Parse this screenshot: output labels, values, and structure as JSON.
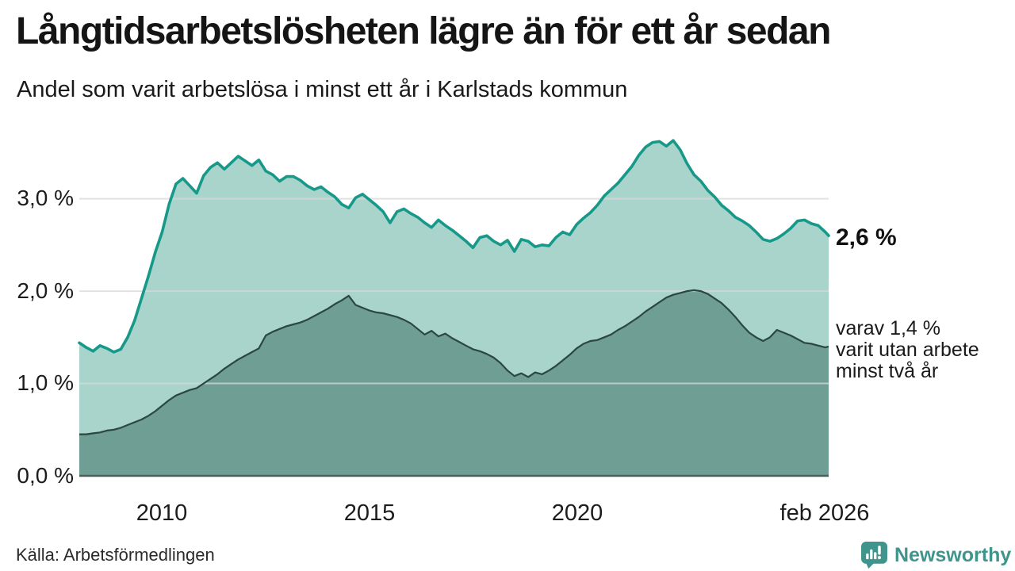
{
  "header": {
    "title": "Långtidsarbetslösheten lägre än för ett år sedan",
    "subtitle": "Andel som varit arbetslösa i minst ett år i Karlstads kommun"
  },
  "footer": {
    "source": "Källa: Arbetsförmedlingen",
    "brand_name": "Newsworthy"
  },
  "chart_data": {
    "type": "area",
    "title": "Långtidsarbetslösheten lägre än för ett år sedan",
    "subtitle": "Andel som varit arbetslösa i minst ett år i Karlstads kommun",
    "unit": "%",
    "grid": true,
    "legend": "none",
    "x_range": [
      2008.0,
      2026.083
    ],
    "y_range": [
      0,
      3.85
    ],
    "y_ticks": [
      {
        "value": 0,
        "label": "0,0 %"
      },
      {
        "value": 1,
        "label": "1,0 %"
      },
      {
        "value": 2,
        "label": "2,0 %"
      },
      {
        "value": 3,
        "label": "3,0 %"
      }
    ],
    "x_ticks": [
      {
        "value": 2010,
        "label": "2010"
      },
      {
        "value": 2015,
        "label": "2015"
      },
      {
        "value": 2020,
        "label": "2020"
      },
      {
        "value": 2026.083,
        "label": "feb 2026"
      }
    ],
    "colors": {
      "total_line": "#17998a",
      "total_fill": "#a8d4cb",
      "two_years_line": "#2b4741",
      "two_years_fill": "#6f9e95",
      "grid": "#d8d8d8",
      "baseline": "#4f5e59",
      "text": "#1a1a1a",
      "brand_teal": "#3f948c"
    },
    "x": [
      2008.0,
      2008.167,
      2008.333,
      2008.5,
      2008.667,
      2008.833,
      2009.0,
      2009.167,
      2009.333,
      2009.5,
      2009.667,
      2009.833,
      2010.0,
      2010.167,
      2010.333,
      2010.5,
      2010.667,
      2010.833,
      2011.0,
      2011.167,
      2011.333,
      2011.5,
      2011.667,
      2011.833,
      2012.0,
      2012.167,
      2012.333,
      2012.5,
      2012.667,
      2012.833,
      2013.0,
      2013.167,
      2013.333,
      2013.5,
      2013.667,
      2013.833,
      2014.0,
      2014.167,
      2014.333,
      2014.5,
      2014.667,
      2014.833,
      2015.0,
      2015.167,
      2015.333,
      2015.5,
      2015.667,
      2015.833,
      2016.0,
      2016.167,
      2016.333,
      2016.5,
      2016.667,
      2016.833,
      2017.0,
      2017.167,
      2017.333,
      2017.5,
      2017.667,
      2017.833,
      2018.0,
      2018.167,
      2018.333,
      2018.5,
      2018.667,
      2018.833,
      2019.0,
      2019.167,
      2019.333,
      2019.5,
      2019.667,
      2019.833,
      2020.0,
      2020.167,
      2020.333,
      2020.5,
      2020.667,
      2020.833,
      2021.0,
      2021.167,
      2021.333,
      2021.5,
      2021.667,
      2021.833,
      2022.0,
      2022.167,
      2022.333,
      2022.5,
      2022.667,
      2022.833,
      2023.0,
      2023.167,
      2023.333,
      2023.5,
      2023.667,
      2023.833,
      2024.0,
      2024.167,
      2024.333,
      2024.5,
      2024.667,
      2024.833,
      2025.0,
      2025.167,
      2025.333,
      2025.5,
      2025.667,
      2025.833,
      2026.0,
      2026.083
    ],
    "series": [
      {
        "name": "Andel arbetslösa minst ett år",
        "end_value": 2.6,
        "values": [
          1.44,
          1.39,
          1.35,
          1.41,
          1.38,
          1.34,
          1.37,
          1.5,
          1.68,
          1.92,
          2.16,
          2.42,
          2.64,
          2.94,
          3.16,
          3.22,
          3.14,
          3.06,
          3.25,
          3.34,
          3.39,
          3.32,
          3.39,
          3.46,
          3.41,
          3.36,
          3.42,
          3.3,
          3.26,
          3.19,
          3.24,
          3.24,
          3.2,
          3.14,
          3.1,
          3.13,
          3.07,
          3.02,
          2.94,
          2.9,
          3.01,
          3.05,
          2.99,
          2.93,
          2.86,
          2.74,
          2.86,
          2.89,
          2.84,
          2.8,
          2.74,
          2.69,
          2.77,
          2.71,
          2.66,
          2.6,
          2.54,
          2.47,
          2.58,
          2.6,
          2.54,
          2.5,
          2.55,
          2.43,
          2.56,
          2.54,
          2.48,
          2.5,
          2.49,
          2.58,
          2.64,
          2.61,
          2.72,
          2.79,
          2.85,
          2.93,
          3.03,
          3.1,
          3.17,
          3.26,
          3.35,
          3.47,
          3.56,
          3.61,
          3.62,
          3.57,
          3.63,
          3.53,
          3.38,
          3.26,
          3.19,
          3.09,
          3.02,
          2.93,
          2.87,
          2.8,
          2.76,
          2.71,
          2.64,
          2.56,
          2.54,
          2.57,
          2.62,
          2.68,
          2.76,
          2.77,
          2.73,
          2.71,
          2.64,
          2.6
        ]
      },
      {
        "name": "varav utan arbete minst två år",
        "end_value": 1.4,
        "values": [
          0.45,
          0.45,
          0.46,
          0.47,
          0.49,
          0.5,
          0.52,
          0.55,
          0.58,
          0.61,
          0.65,
          0.7,
          0.76,
          0.82,
          0.87,
          0.9,
          0.93,
          0.95,
          1.0,
          1.05,
          1.1,
          1.16,
          1.21,
          1.26,
          1.3,
          1.34,
          1.38,
          1.52,
          1.56,
          1.59,
          1.62,
          1.64,
          1.66,
          1.69,
          1.73,
          1.77,
          1.81,
          1.86,
          1.9,
          1.95,
          1.85,
          1.82,
          1.79,
          1.77,
          1.76,
          1.74,
          1.72,
          1.69,
          1.65,
          1.59,
          1.53,
          1.57,
          1.51,
          1.54,
          1.49,
          1.45,
          1.41,
          1.37,
          1.35,
          1.32,
          1.28,
          1.22,
          1.14,
          1.08,
          1.11,
          1.07,
          1.12,
          1.1,
          1.14,
          1.19,
          1.25,
          1.31,
          1.38,
          1.43,
          1.46,
          1.47,
          1.5,
          1.53,
          1.58,
          1.62,
          1.67,
          1.72,
          1.78,
          1.83,
          1.88,
          1.93,
          1.96,
          1.98,
          2.0,
          2.01,
          2.0,
          1.97,
          1.92,
          1.87,
          1.8,
          1.72,
          1.63,
          1.55,
          1.5,
          1.46,
          1.5,
          1.58,
          1.55,
          1.52,
          1.48,
          1.44,
          1.43,
          1.41,
          1.39,
          1.4
        ]
      }
    ],
    "annotations": {
      "end_label_total": "2,6 %",
      "end_label_sub": [
        "varav 1,4 %",
        "varit utan arbete",
        "minst två år"
      ]
    }
  }
}
